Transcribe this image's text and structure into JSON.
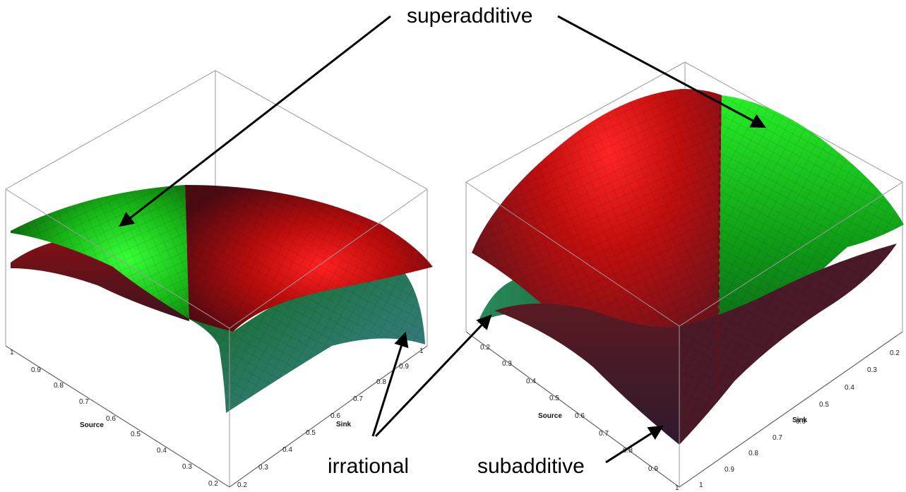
{
  "annotations": {
    "superadditive": "superadditive",
    "irrational": "irrational",
    "subadditive": "subadditive"
  },
  "left_plot": {
    "source_label": "Source",
    "sink_label": "Sink",
    "source_ticks": [
      "1",
      "0.9",
      "0.8",
      "0.7",
      "0.6",
      "0.5",
      "0.4",
      "0.3",
      "0.2"
    ],
    "sink_ticks": [
      "0.2",
      "0.3",
      "0.4",
      "0.5",
      "0.6",
      "0.7",
      "0.8",
      "0.9",
      "1"
    ]
  },
  "right_plot": {
    "source_label": "Source",
    "sink_label": "Sink",
    "source_ticks": [
      "0.2",
      "0.3",
      "0.4",
      "0.5",
      "0.6",
      "0.7",
      "0.8",
      "0.9",
      "1"
    ],
    "sink_ticks": [
      "0.2",
      "0.3",
      "0.4",
      "0.5",
      "0.6",
      "0.7",
      "0.8",
      "0.9",
      "1"
    ]
  },
  "colors": {
    "superadditive_surface": "#00c800",
    "irrational_surface": "#2e7a72",
    "subadditive_surface": "#b00000",
    "box_lines": "#9a9a9a"
  }
}
